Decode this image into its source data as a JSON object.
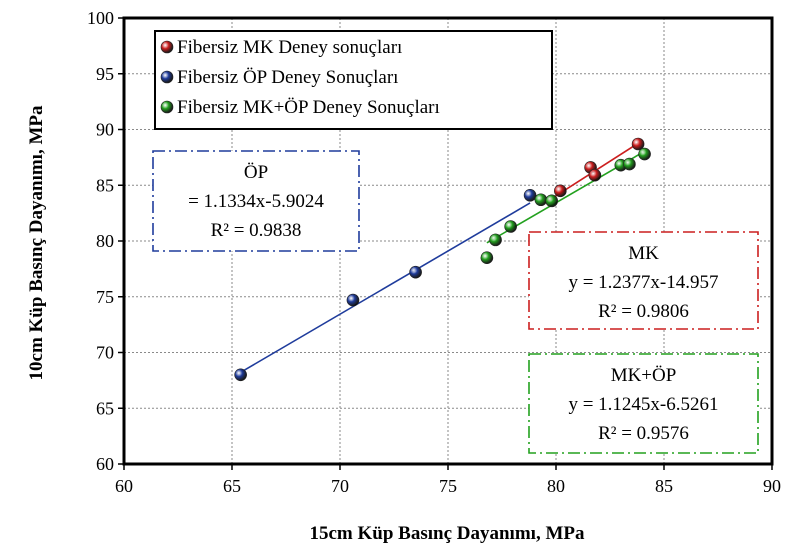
{
  "chart_data": {
    "type": "scatter",
    "xlabel": "15cm Küp Basınç Dayanımı, MPa",
    "ylabel": "10cm Küp Basınç Dayanımı, MPa",
    "xlim": [
      60,
      90
    ],
    "ylim": [
      60,
      100
    ],
    "x_ticks": [
      "60",
      "65",
      "70",
      "75",
      "80",
      "85",
      "90"
    ],
    "y_ticks": [
      "60",
      "65",
      "70",
      "75",
      "80",
      "85",
      "90",
      "95",
      "100"
    ],
    "grid": true,
    "legend_position": "top-left",
    "series": [
      {
        "name": "Fibersiz MK Deney sonuçları",
        "color": "#cc1f1f",
        "points": [
          [
            80.2,
            84.5
          ],
          [
            81.6,
            86.6
          ],
          [
            81.8,
            85.9
          ],
          [
            83.8,
            88.7
          ]
        ],
        "trendline": {
          "x_range": [
            79.5,
            83.9
          ],
          "slope": 1.2377,
          "intercept": -14.957
        }
      },
      {
        "name": "Fibersiz ÖP Deney Sonuçları",
        "color": "#1f3c9c",
        "points": [
          [
            65.4,
            68.0
          ],
          [
            70.6,
            74.7
          ],
          [
            73.5,
            77.2
          ],
          [
            78.8,
            84.1
          ]
        ],
        "trendline": {
          "x_range": [
            65.4,
            78.8
          ],
          "slope": 1.1334,
          "intercept": -5.9024
        }
      },
      {
        "name": "Fibersiz MK+ÖP Deney Sonuçları",
        "color": "#23a11f",
        "points": [
          [
            76.8,
            78.5
          ],
          [
            77.2,
            80.1
          ],
          [
            77.9,
            81.3
          ],
          [
            79.3,
            83.7
          ],
          [
            79.8,
            83.6
          ],
          [
            83.0,
            86.8
          ],
          [
            83.4,
            86.9
          ],
          [
            84.1,
            87.8
          ]
        ],
        "trendline": {
          "x_range": [
            76.8,
            84.1
          ],
          "slope": 1.1245,
          "intercept": -6.5261
        }
      }
    ],
    "annotations": [
      {
        "id": "op",
        "lines": [
          "ÖP",
          "= 1.1334x-5.9024",
          "R² = 0.9838"
        ],
        "color": "#1f3c9c"
      },
      {
        "id": "mk",
        "lines": [
          "MK",
          "y = 1.2377x-14.957",
          "R² = 0.9806"
        ],
        "color": "#cc1f1f"
      },
      {
        "id": "mkop",
        "lines": [
          "MK+ÖP",
          "y = 1.1245x-6.5261",
          "R² = 0.9576"
        ],
        "color": "#23a11f"
      }
    ]
  }
}
